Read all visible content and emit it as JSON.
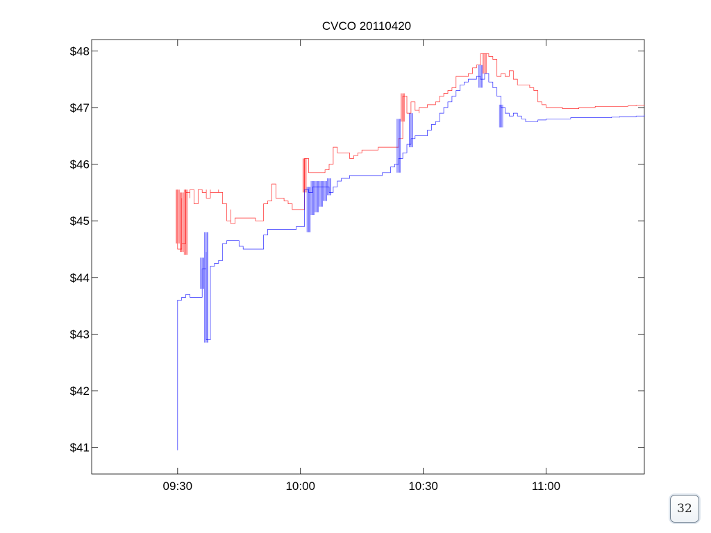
{
  "slide": {
    "page_number": "32"
  },
  "chart_data": {
    "type": "line",
    "title": "CVCO 20110420",
    "xlabel": "",
    "ylabel": "",
    "x_ticks": [
      "09:30",
      "10:00",
      "10:30",
      "11:00"
    ],
    "y_ticks": [
      "$41",
      "$42",
      "$43",
      "$44",
      "$45",
      "$46",
      "$47",
      "$48"
    ],
    "xlim": [
      "09:09",
      "11:24"
    ],
    "ylim": [
      40.53,
      48.2
    ],
    "grid": false,
    "series": [
      {
        "color": "#ff0000",
        "x": [
          "09:30",
          "09:30",
          "09:30",
          "09:30",
          "09:31",
          "09:31",
          "09:32",
          "09:32",
          "09:32",
          "09:33",
          "09:33",
          "09:34",
          "09:34",
          "09:35",
          "09:36",
          "09:37",
          "09:37",
          "09:38",
          "09:38",
          "09:39",
          "09:40",
          "09:40",
          "09:41",
          "09:42",
          "09:43",
          "09:43",
          "09:44",
          "09:45",
          "09:46",
          "09:47",
          "09:48",
          "09:49",
          "09:50",
          "09:51",
          "09:51",
          "09:52",
          "09:53",
          "09:53",
          "09:54",
          "09:55",
          "09:56",
          "09:57",
          "09:58",
          "09:59",
          "10:00",
          "10:01",
          "10:01",
          "10:02",
          "10:03",
          "10:04",
          "10:05",
          "10:06",
          "10:07",
          "10:08",
          "10:09",
          "10:10",
          "10:11",
          "10:12",
          "10:13",
          "10:14",
          "10:15",
          "10:16",
          "10:17",
          "10:18",
          "10:19",
          "10:20",
          "10:21",
          "10:22",
          "10:23",
          "10:24",
          "10:25",
          "10:25",
          "10:26",
          "10:27",
          "10:28",
          "10:29",
          "10:29",
          "10:30",
          "10:31",
          "10:32",
          "10:33",
          "10:34",
          "10:35",
          "10:36",
          "10:37",
          "10:38",
          "10:39",
          "10:40",
          "10:41",
          "10:42",
          "10:43",
          "10:44",
          "10:44",
          "10:45",
          "10:46",
          "10:47",
          "10:48",
          "10:49",
          "10:50",
          "10:51",
          "10:52",
          "10:53",
          "10:54",
          "10:55",
          "10:56",
          "10:57",
          "10:58",
          "10:59",
          "11:00",
          "11:01",
          "11:02",
          "11:03",
          "11:04",
          "11:05",
          "11:06",
          "11:08",
          "11:10",
          "11:12",
          "11:14",
          "11:16",
          "11:18",
          "11:20",
          "11:22",
          "11:24"
        ],
        "y": [
          45.5,
          44.9,
          45.55,
          44.5,
          45.4,
          44.6,
          45.55,
          44.7,
          45.5,
          45.4,
          45.55,
          45.5,
          45.3,
          45.55,
          45.5,
          45.55,
          45.4,
          45.55,
          45.5,
          45.5,
          45.55,
          45.5,
          45.3,
          45.0,
          45.2,
          44.95,
          45.05,
          45.05,
          45.05,
          45.05,
          45.05,
          45.0,
          45.0,
          45.2,
          45.3,
          45.35,
          45.35,
          45.65,
          45.4,
          45.4,
          45.35,
          45.3,
          45.2,
          45.2,
          45.2,
          45.35,
          46.1,
          45.85,
          45.85,
          45.85,
          45.85,
          45.9,
          46.0,
          46.3,
          46.2,
          46.2,
          46.2,
          46.1,
          46.15,
          46.2,
          46.25,
          46.25,
          46.25,
          46.25,
          46.3,
          46.3,
          46.3,
          46.3,
          46.3,
          46.45,
          46.9,
          47.2,
          46.9,
          47.1,
          46.95,
          46.9,
          47.0,
          47.0,
          47.05,
          47.05,
          47.1,
          47.2,
          47.25,
          47.3,
          47.35,
          47.55,
          47.55,
          47.55,
          47.6,
          47.7,
          47.75,
          47.85,
          47.95,
          47.95,
          47.9,
          47.85,
          47.55,
          47.6,
          47.55,
          47.65,
          47.5,
          47.4,
          47.4,
          47.4,
          47.35,
          47.3,
          47.1,
          47.05,
          47.0,
          47.0,
          47.0,
          47.0,
          46.98,
          46.98,
          46.98,
          47.0,
          47.0,
          47.02,
          47.02,
          47.02,
          47.02,
          47.03,
          47.04,
          47.05
        ],
        "spikes": [
          {
            "x": "09:30",
            "y_low": 44.6,
            "y_high": 45.55
          },
          {
            "x": "09:31",
            "y_low": 44.45,
            "y_high": 45.5
          },
          {
            "x": "09:32",
            "y_low": 44.4,
            "y_high": 45.55
          },
          {
            "x": "10:01",
            "y_low": 45.5,
            "y_high": 46.1
          },
          {
            "x": "10:25",
            "y_low": 46.75,
            "y_high": 47.25
          },
          {
            "x": "10:45",
            "y_low": 47.6,
            "y_high": 47.95
          }
        ]
      },
      {
        "color": "#0000ff",
        "x": [
          "09:30",
          "09:30",
          "09:30",
          "09:31",
          "09:32",
          "09:33",
          "09:34",
          "09:35",
          "09:36",
          "09:36",
          "09:37",
          "09:37",
          "09:38",
          "09:38",
          "09:39",
          "09:40",
          "09:41",
          "09:42",
          "09:43",
          "09:44",
          "09:45",
          "09:46",
          "09:47",
          "09:48",
          "09:49",
          "09:50",
          "09:51",
          "09:52",
          "09:53",
          "09:54",
          "09:55",
          "09:56",
          "09:57",
          "09:58",
          "09:59",
          "10:00",
          "10:01",
          "10:01",
          "10:02",
          "10:03",
          "10:04",
          "10:05",
          "10:06",
          "10:07",
          "10:08",
          "10:09",
          "10:10",
          "10:12",
          "10:14",
          "10:16",
          "10:18",
          "10:20",
          "10:22",
          "10:23",
          "10:24",
          "10:25",
          "10:26",
          "10:27",
          "10:28",
          "10:29",
          "10:30",
          "10:31",
          "10:32",
          "10:33",
          "10:34",
          "10:35",
          "10:36",
          "10:37",
          "10:38",
          "10:39",
          "10:40",
          "10:41",
          "10:42",
          "10:43",
          "10:44",
          "10:45",
          "10:46",
          "10:47",
          "10:48",
          "10:49",
          "10:50",
          "10:51",
          "10:52",
          "10:53",
          "10:54",
          "10:55",
          "10:56",
          "10:57",
          "10:58",
          "10:59",
          "11:00",
          "11:02",
          "11:04",
          "11:06",
          "11:08",
          "11:10",
          "11:12",
          "11:14",
          "11:16",
          "11:18",
          "11:20",
          "11:22",
          "11:24"
        ],
        "y": [
          40.95,
          43.6,
          43.6,
          43.65,
          43.7,
          43.65,
          43.65,
          43.65,
          43.65,
          44.15,
          44.45,
          42.9,
          44.1,
          44.2,
          44.25,
          44.3,
          44.6,
          44.65,
          44.65,
          44.65,
          44.55,
          44.5,
          44.5,
          44.5,
          44.5,
          44.5,
          44.75,
          44.85,
          44.85,
          44.85,
          44.85,
          44.85,
          44.85,
          44.85,
          44.9,
          44.9,
          44.9,
          45.55,
          45.5,
          45.6,
          45.6,
          45.6,
          45.6,
          45.5,
          45.6,
          45.7,
          45.75,
          45.8,
          45.8,
          45.8,
          45.8,
          45.85,
          45.95,
          46.0,
          46.1,
          46.2,
          46.35,
          46.45,
          46.5,
          46.5,
          46.5,
          46.6,
          46.7,
          46.75,
          46.9,
          47.0,
          47.1,
          47.2,
          47.3,
          47.4,
          47.45,
          47.5,
          47.5,
          47.55,
          47.5,
          47.6,
          47.45,
          47.35,
          47.2,
          47.0,
          46.9,
          46.85,
          46.9,
          46.85,
          46.8,
          46.75,
          46.75,
          46.75,
          46.78,
          46.78,
          46.8,
          46.8,
          46.8,
          46.82,
          46.82,
          46.82,
          46.82,
          46.82,
          46.83,
          46.84,
          46.84,
          46.85,
          46.87
        ],
        "spikes": [
          {
            "x": "09:37",
            "y_low": 42.85,
            "y_high": 44.8
          },
          {
            "x": "09:36",
            "y_low": 43.8,
            "y_high": 44.35
          },
          {
            "x": "10:02",
            "y_low": 44.8,
            "y_high": 45.6
          },
          {
            "x": "10:03",
            "y_low": 45.1,
            "y_high": 45.7
          },
          {
            "x": "10:04",
            "y_low": 45.15,
            "y_high": 45.7
          },
          {
            "x": "10:05",
            "y_low": 45.25,
            "y_high": 45.7
          },
          {
            "x": "10:06",
            "y_low": 45.35,
            "y_high": 45.7
          },
          {
            "x": "10:07",
            "y_low": 45.45,
            "y_high": 45.75
          },
          {
            "x": "10:24",
            "y_low": 45.85,
            "y_high": 46.8
          },
          {
            "x": "10:27",
            "y_low": 46.3,
            "y_high": 46.9
          },
          {
            "x": "10:44",
            "y_low": 47.35,
            "y_high": 47.75
          },
          {
            "x": "10:49",
            "y_low": 46.65,
            "y_high": 47.05
          }
        ]
      }
    ]
  }
}
